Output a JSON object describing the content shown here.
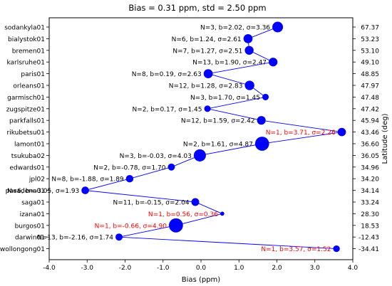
{
  "chart_data": {
    "type": "scatter",
    "title": "Bias = 0.31 ppm, std = 2.50 ppm",
    "xlabel": "Bias (ppm)",
    "ylabel_right": "Latitude (deg)",
    "xlim": [
      -4.0,
      4.0
    ],
    "xticks": [
      "-4.0",
      "-3.0",
      "-2.0",
      "-1.0",
      "0.0",
      "1.0",
      "2.0",
      "3.0",
      "4.0"
    ],
    "grid": false,
    "colors": {
      "marker": "#0000ff",
      "line": "#0000ff",
      "label_normal": "#000000",
      "label_highlight": "#ff0000"
    },
    "sites": [
      {
        "name": "sodankyla01",
        "latitude": "67.37",
        "bias": 2.02,
        "std": 3.36,
        "n": 3,
        "label": "N=3, b=2.02, σ=3.36",
        "highlight": false
      },
      {
        "name": "bialystok01",
        "latitude": "53.23",
        "bias": 1.24,
        "std": 2.61,
        "n": 6,
        "label": "N=6, b=1.24, σ=2.61",
        "highlight": false
      },
      {
        "name": "bremen01",
        "latitude": "53.10",
        "bias": 1.27,
        "std": 2.51,
        "n": 7,
        "label": "N=7, b=1.27, σ=2.51",
        "highlight": false
      },
      {
        "name": "karlsruhe01",
        "latitude": "49.10",
        "bias": 1.9,
        "std": 2.47,
        "n": 13,
        "label": "N=13, b=1.90, σ=2.47",
        "highlight": false
      },
      {
        "name": "paris01",
        "latitude": "48.85",
        "bias": 0.19,
        "std": 2.63,
        "n": 8,
        "label": "N=8, b=0.19, σ=2.63",
        "highlight": false
      },
      {
        "name": "orleans01",
        "latitude": "47.97",
        "bias": 1.28,
        "std": 2.83,
        "n": 12,
        "label": "N=12, b=1.28, σ=2.83",
        "highlight": false
      },
      {
        "name": "garmisch01",
        "latitude": "47.48",
        "bias": 1.7,
        "std": 1.45,
        "n": 3,
        "label": "N=3, b=1.70, σ=1.45",
        "highlight": false
      },
      {
        "name": "zugspitze01",
        "latitude": "47.42",
        "bias": 0.17,
        "std": 1.45,
        "n": 2,
        "label": "N=2, b=0.17, σ=1.45",
        "highlight": false
      },
      {
        "name": "parkfalls01",
        "latitude": "45.94",
        "bias": 1.59,
        "std": 2.42,
        "n": 12,
        "label": "N=12, b=1.59, σ=2.42",
        "highlight": false
      },
      {
        "name": "rikubetsu01",
        "latitude": "43.46",
        "bias": 3.71,
        "std": 2.26,
        "n": 1,
        "label": "N=1, b=3.71, σ=2.26",
        "highlight": true
      },
      {
        "name": "lamont01",
        "latitude": "36.60",
        "bias": 1.61,
        "std": 4.87,
        "n": 2,
        "label": "N=2, b=1.61, σ=4.87",
        "highlight": false
      },
      {
        "name": "tsukuba02",
        "latitude": "36.05",
        "bias": -0.03,
        "std": 4.03,
        "n": 3,
        "label": "N=3, b=-0.03, σ=4.03",
        "highlight": false
      },
      {
        "name": "edwards01",
        "latitude": "34.96",
        "bias": -0.78,
        "std": 1.7,
        "n": 2,
        "label": "N=2, b=-0.78, σ=1.70",
        "highlight": false
      },
      {
        "name": "jpl02",
        "latitude": "34.20",
        "bias": -1.88,
        "std": 1.89,
        "n": 8,
        "label": "N=8, b=-1.88, σ=1.89",
        "highlight": false
      },
      {
        "name": "pasadena01",
        "latitude": "34.14",
        "bias": -3.05,
        "std": 1.93,
        "n": 6,
        "label": "N=6, b=-3.05, σ=1.93",
        "highlight": false
      },
      {
        "name": "saga01",
        "latitude": "33.24",
        "bias": -0.15,
        "std": 2.04,
        "n": 11,
        "label": "N=11, b=-0.15, σ=2.04",
        "highlight": false
      },
      {
        "name": "izana01",
        "latitude": "28.30",
        "bias": 0.56,
        "std": 0.36,
        "n": 1,
        "label": "N=1, b=0.56, σ=0.36",
        "highlight": true
      },
      {
        "name": "burgos01",
        "latitude": "18.53",
        "bias": -0.66,
        "std": 4.9,
        "n": 1,
        "label": "N=1, b=-0.66, σ=4.90",
        "highlight": true
      },
      {
        "name": "darwin01",
        "latitude": "-12.43",
        "bias": -2.16,
        "std": 1.74,
        "n": 13,
        "label": "N=13, b=-2.16, σ=1.74",
        "highlight": false
      },
      {
        "name": "wollongong01",
        "latitude": "-34.41",
        "bias": 3.57,
        "std": 1.52,
        "n": 1,
        "label": "N=1, b=3.57, σ=1.52",
        "highlight": true
      }
    ]
  }
}
